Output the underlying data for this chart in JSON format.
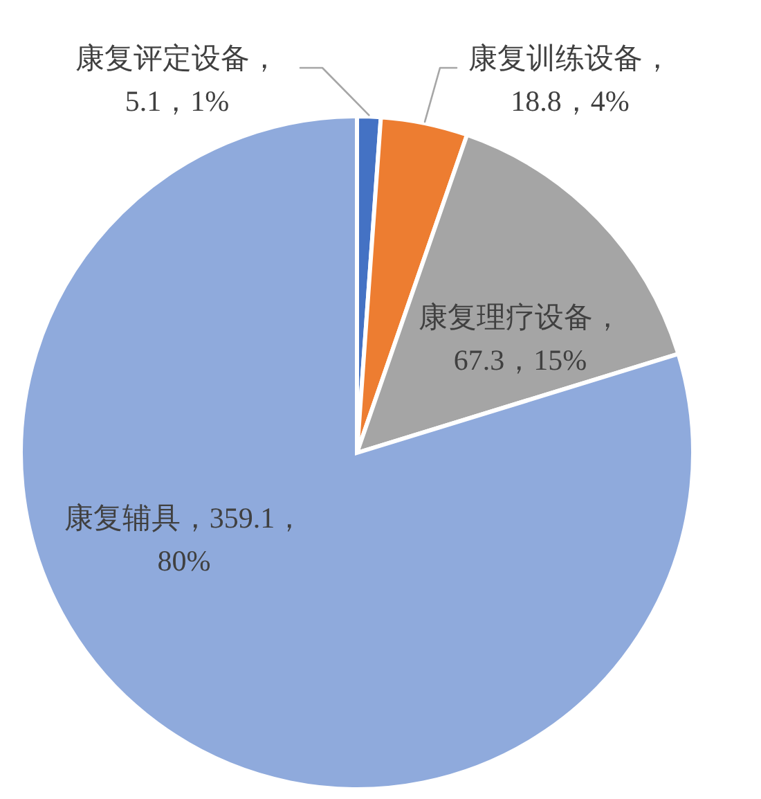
{
  "chart_data": {
    "type": "pie",
    "categories": [
      "康复评定设备",
      "康复训练设备",
      "康复理疗设备",
      "康复辅具"
    ],
    "values": [
      5.1,
      18.8,
      67.3,
      359.1
    ],
    "colors": [
      "#4472c4",
      "#ed7d31",
      "#a5a5a5",
      "#8faadc"
    ],
    "value_labels": [
      "，\n5.1，1%",
      "，\n18.8，4%",
      "，\n67.3，15%",
      "，359.1，\n80%"
    ]
  }
}
